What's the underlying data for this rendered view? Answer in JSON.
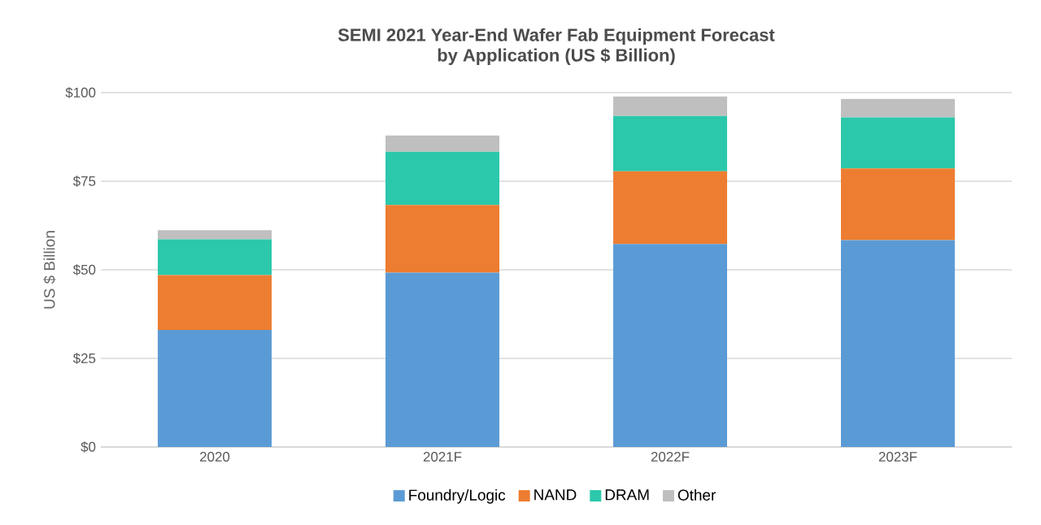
{
  "chart_data": {
    "type": "bar",
    "stacked": true,
    "title": "SEMI 2021 Year-End Wafer Fab Equipment Forecast\nby Application (US $ Billion)",
    "ylabel": "US $ Billion",
    "categories": [
      "2020",
      "2021F",
      "2022F",
      "2023F"
    ],
    "series": [
      {
        "name": "Foundry/Logic",
        "color": "#5b9bd5",
        "values": [
          33.0,
          49.2,
          57.3,
          58.4
        ]
      },
      {
        "name": "NAND",
        "color": "#ed7d31",
        "values": [
          15.5,
          19.1,
          20.5,
          20.2
        ]
      },
      {
        "name": "DRAM",
        "color": "#2bc8ab",
        "values": [
          10.1,
          15.0,
          15.6,
          14.4
        ]
      },
      {
        "name": "Other",
        "color": "#bfbfbf",
        "values": [
          2.6,
          4.6,
          5.5,
          5.2
        ]
      }
    ],
    "ylim": [
      0,
      100
    ],
    "yticks": [
      {
        "value": 0,
        "label": "$0"
      },
      {
        "value": 25,
        "label": "$25"
      },
      {
        "value": 50,
        "label": "$50"
      },
      {
        "value": 75,
        "label": "$75"
      },
      {
        "value": 100,
        "label": "$100"
      }
    ],
    "grid": "y",
    "legend": "bottom"
  }
}
